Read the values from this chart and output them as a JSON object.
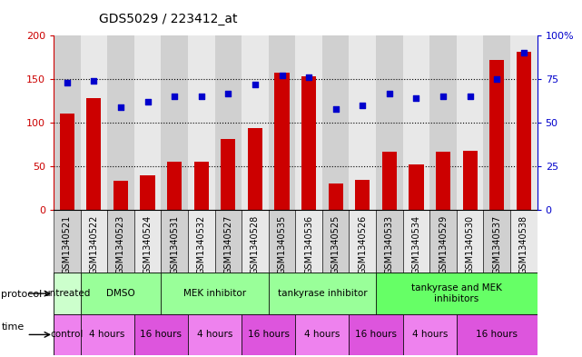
{
  "title": "GDS5029 / 223412_at",
  "samples": [
    "GSM1340521",
    "GSM1340522",
    "GSM1340523",
    "GSM1340524",
    "GSM1340531",
    "GSM1340532",
    "GSM1340527",
    "GSM1340528",
    "GSM1340535",
    "GSM1340536",
    "GSM1340525",
    "GSM1340526",
    "GSM1340533",
    "GSM1340534",
    "GSM1340529",
    "GSM1340530",
    "GSM1340537",
    "GSM1340538"
  ],
  "counts": [
    110,
    128,
    33,
    39,
    55,
    55,
    81,
    94,
    158,
    153,
    30,
    34,
    67,
    52,
    67,
    68,
    172,
    181
  ],
  "percentiles": [
    73,
    74,
    59,
    62,
    65,
    65,
    67,
    72,
    77,
    76,
    58,
    60,
    67,
    64,
    65,
    65,
    75,
    90
  ],
  "bar_color": "#cc0000",
  "dot_color": "#0000cc",
  "ylim_left": [
    0,
    200
  ],
  "ylim_right": [
    0,
    100
  ],
  "yticks_left": [
    0,
    50,
    100,
    150,
    200
  ],
  "yticks_right": [
    0,
    25,
    50,
    75,
    100
  ],
  "yticklabels_left": [
    "0",
    "50",
    "100",
    "150",
    "200"
  ],
  "yticklabels_right": [
    "0",
    "25",
    "50",
    "75",
    "100%"
  ],
  "protocol_groups": [
    {
      "label": "untreated",
      "start": 0,
      "end": 1,
      "color": "#ccffcc"
    },
    {
      "label": "DMSO",
      "start": 1,
      "end": 4,
      "color": "#99ff99"
    },
    {
      "label": "MEK inhibitor",
      "start": 4,
      "end": 8,
      "color": "#99ff99"
    },
    {
      "label": "tankyrase inhibitor",
      "start": 8,
      "end": 12,
      "color": "#99ff99"
    },
    {
      "label": "tankyrase and MEK\ninhibitors",
      "start": 12,
      "end": 18,
      "color": "#66ff66"
    }
  ],
  "time_groups": [
    {
      "label": "control",
      "start": 0,
      "end": 1,
      "color": "#ee82ee"
    },
    {
      "label": "4 hours",
      "start": 1,
      "end": 3,
      "color": "#ee82ee"
    },
    {
      "label": "16 hours",
      "start": 3,
      "end": 5,
      "color": "#dd55dd"
    },
    {
      "label": "4 hours",
      "start": 5,
      "end": 7,
      "color": "#ee82ee"
    },
    {
      "label": "16 hours",
      "start": 7,
      "end": 9,
      "color": "#dd55dd"
    },
    {
      "label": "4 hours",
      "start": 9,
      "end": 11,
      "color": "#ee82ee"
    },
    {
      "label": "16 hours",
      "start": 11,
      "end": 13,
      "color": "#dd55dd"
    },
    {
      "label": "4 hours",
      "start": 13,
      "end": 15,
      "color": "#ee82ee"
    },
    {
      "label": "16 hours",
      "start": 15,
      "end": 18,
      "color": "#dd55dd"
    }
  ],
  "legend_count_color": "#cc0000",
  "legend_dot_color": "#0000cc",
  "background_color": "white",
  "tick_label_fontsize": 7,
  "sample_bg_even": "#d0d0d0",
  "sample_bg_odd": "#e8e8e8",
  "axis_color_left": "#cc0000",
  "axis_color_right": "#0000cc"
}
